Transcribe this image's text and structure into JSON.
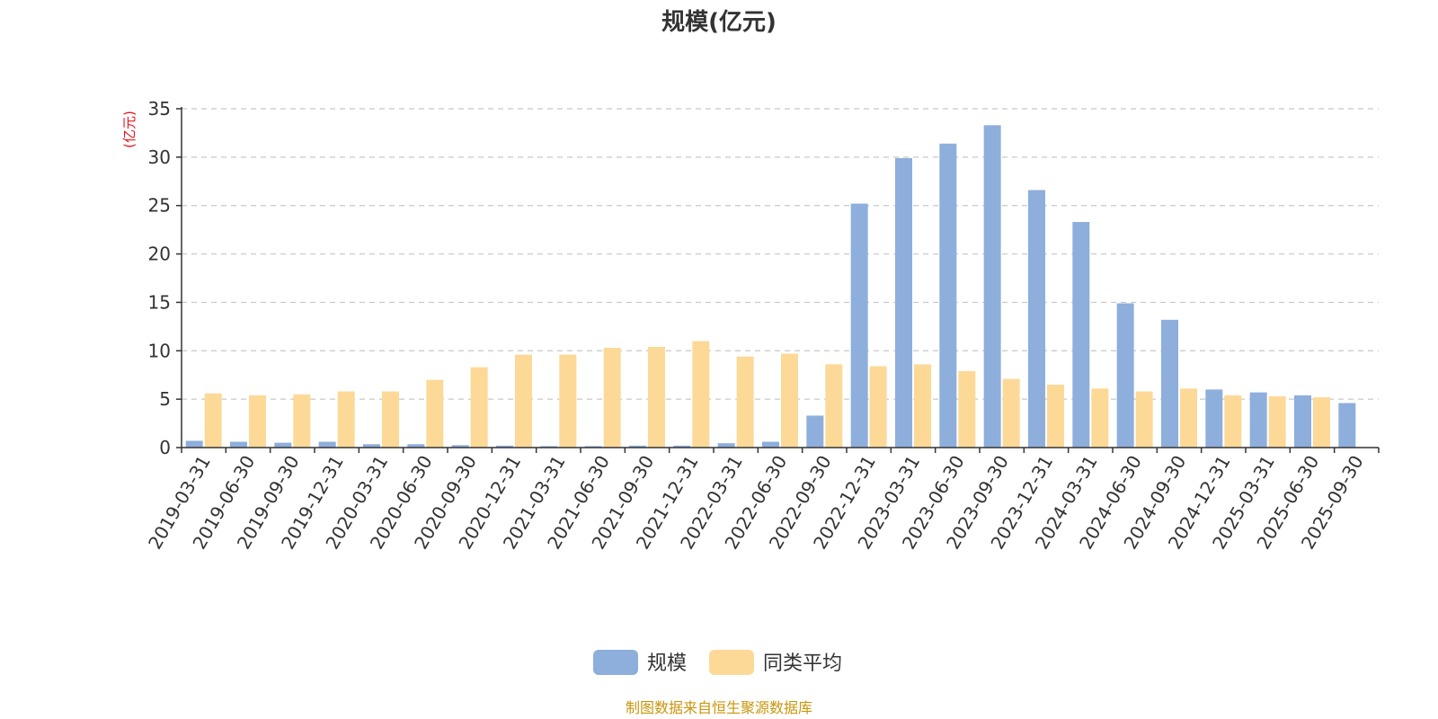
{
  "chart_data": {
    "type": "bar",
    "title": "规模(亿元)",
    "ylabel": "(亿元)",
    "xlabel": "",
    "ylim": [
      0,
      35
    ],
    "yticks": [
      0,
      5,
      10,
      15,
      20,
      25,
      30,
      35
    ],
    "grid": true,
    "legend_position": "bottom",
    "categories": [
      "2019-03-31",
      "2019-06-30",
      "2019-09-30",
      "2019-12-31",
      "2020-03-31",
      "2020-06-30",
      "2020-09-30",
      "2020-12-31",
      "2021-03-31",
      "2021-06-30",
      "2021-09-30",
      "2021-12-31",
      "2022-03-31",
      "2022-06-30",
      "2022-09-30",
      "2022-12-31",
      "2023-03-31",
      "2023-06-30",
      "2023-09-30",
      "2023-12-31",
      "2024-03-31",
      "2024-06-30",
      "2024-09-30",
      "2024-12-31",
      "2025-03-31",
      "2025-06-30",
      "2025-09-30"
    ],
    "series": [
      {
        "name": "规模",
        "color": "#8eaedc",
        "values": [
          0.7,
          0.6,
          0.5,
          0.6,
          0.35,
          0.35,
          0.25,
          0.2,
          0.15,
          0.15,
          0.2,
          0.2,
          0.45,
          0.6,
          3.3,
          25.2,
          29.9,
          31.4,
          33.3,
          26.6,
          23.3,
          14.9,
          13.2,
          6.0,
          5.7,
          5.4,
          4.6
        ]
      },
      {
        "name": "同类平均",
        "color": "#fdd998",
        "values": [
          5.6,
          5.4,
          5.5,
          5.8,
          5.8,
          7.0,
          8.3,
          9.6,
          9.6,
          10.3,
          10.4,
          11.0,
          9.4,
          9.7,
          8.6,
          8.4,
          8.6,
          7.9,
          7.1,
          6.5,
          6.1,
          5.8,
          6.1,
          5.4,
          5.3,
          5.2,
          null
        ]
      }
    ]
  },
  "source": "制图数据来自恒生聚源数据库"
}
